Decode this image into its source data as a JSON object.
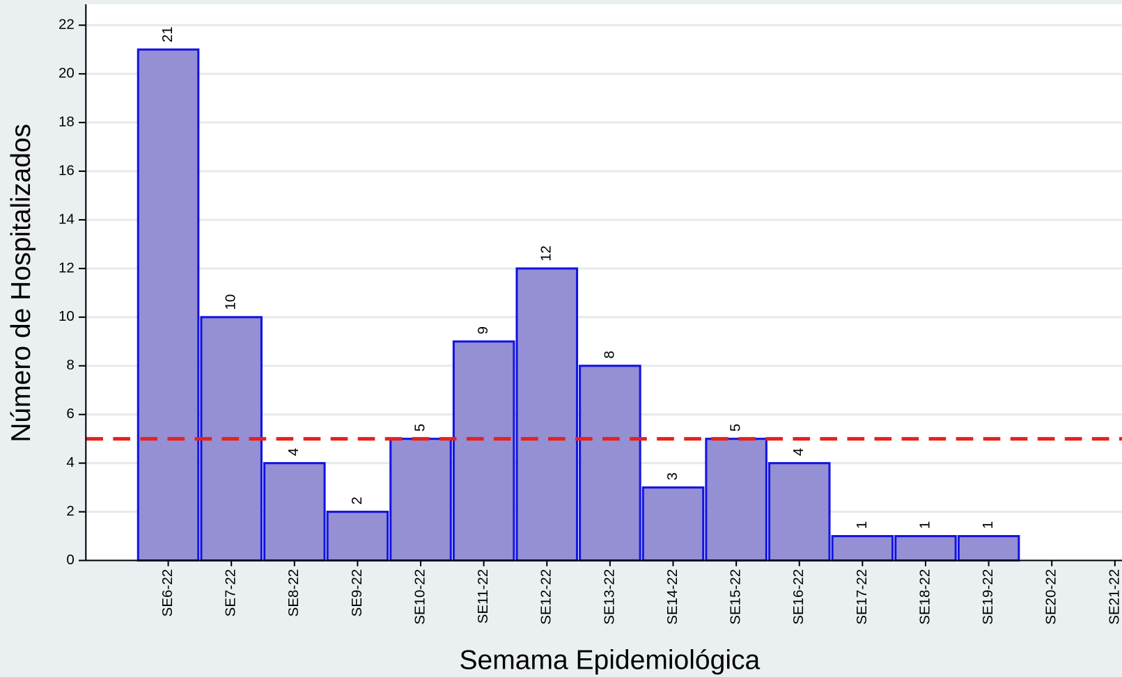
{
  "chart_data": {
    "type": "bar",
    "x_label": "Semama Epidemiológica",
    "y_label": "Número de Hospitalizados",
    "categories": [
      "SE6-22",
      "SE7-22",
      "SE8-22",
      "SE9-22",
      "SE10-22",
      "SE11-22",
      "SE12-22",
      "SE13-22",
      "SE14-22",
      "SE15-22",
      "SE16-22",
      "SE17-22",
      "SE18-22",
      "SE19-22",
      "SE20-22",
      "SE21-22"
    ],
    "values": [
      21,
      10,
      4,
      2,
      5,
      9,
      12,
      8,
      3,
      5,
      4,
      1,
      1,
      1,
      null,
      null
    ],
    "color": "#9590d4",
    "edgecolor": "#1414e0",
    "reference_line": {
      "value": 5,
      "color": "#e8201c"
    },
    "ylim": [
      0,
      22.8
    ],
    "yticks": [
      0,
      2,
      4,
      6,
      8,
      10,
      12,
      14,
      16,
      18,
      20,
      22
    ],
    "grid": true
  }
}
